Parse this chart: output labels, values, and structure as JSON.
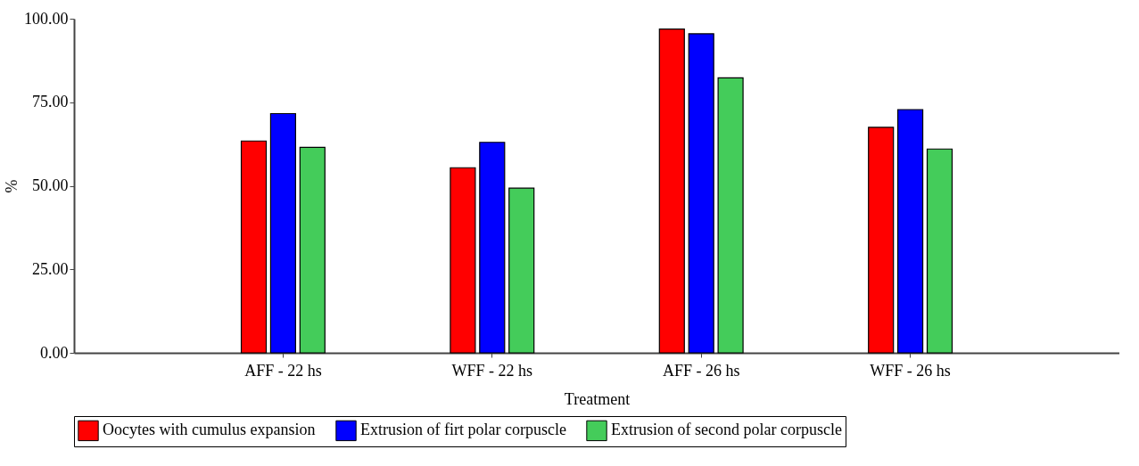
{
  "chart_data": {
    "type": "bar",
    "xlabel": "Treatment",
    "ylabel": "%",
    "categories": [
      "AFF - 22 hs",
      "WFF - 22 hs",
      "AFF - 26 hs",
      "WFF - 26 hs"
    ],
    "series": [
      {
        "name": "Oocytes with cumulus expansion",
        "color": "#ff0000",
        "values": [
          63.4,
          55.4,
          96.9,
          67.5
        ]
      },
      {
        "name": "Extrusion of firt polar corpuscle",
        "color": "#0000ff",
        "values": [
          71.6,
          63.0,
          95.5,
          72.8
        ]
      },
      {
        "name": "Extrusion of second polar corpuscle",
        "color": "#44cc5a",
        "values": [
          61.5,
          49.3,
          82.3,
          61.0
        ]
      }
    ],
    "ylim": [
      0,
      100
    ],
    "yticks": [
      {
        "value": 0,
        "label": "0.00"
      },
      {
        "value": 25,
        "label": "25.00"
      },
      {
        "value": 50,
        "label": "50.00"
      },
      {
        "value": 75,
        "label": "75.00"
      },
      {
        "value": 100,
        "label": "100.00"
      }
    ],
    "grid": false,
    "legend": "bottom"
  }
}
